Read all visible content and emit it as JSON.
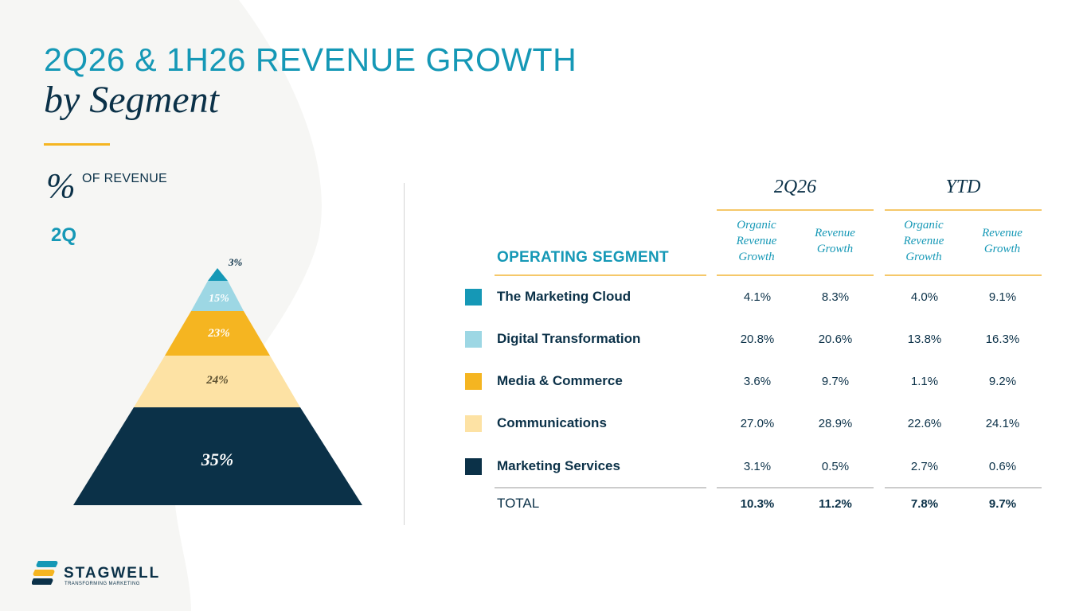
{
  "title": {
    "line1": "2Q26 & 1H26 REVENUE GROWTH",
    "line2": "by Segment"
  },
  "pct_block": {
    "symbol": "%",
    "label": "OF REVENUE",
    "period": "2Q"
  },
  "colors": {
    "accent_teal": "#1598b6",
    "navy": "#0b3148",
    "yellow": "#f5b521",
    "light_teal": "#9dd7e4",
    "light_yellow": "#fde2a4"
  },
  "pyramid": {
    "layers": [
      {
        "label": "3%",
        "color": "#1598b6"
      },
      {
        "label": "15%",
        "color": "#9dd7e4"
      },
      {
        "label": "23%",
        "color": "#f5b521"
      },
      {
        "label": "24%",
        "color": "#fde2a4"
      },
      {
        "label": "35%",
        "color": "#0b3148"
      }
    ]
  },
  "table": {
    "segment_header": "OPERATING SEGMENT",
    "groups": [
      {
        "title": "2Q26",
        "cols": [
          "Organic Revenue Growth",
          "Revenue Growth"
        ]
      },
      {
        "title": "YTD",
        "cols": [
          "Organic Revenue Growth",
          "Revenue Growth"
        ]
      }
    ],
    "rows": [
      {
        "name": "The Marketing Cloud",
        "color": "#1598b6",
        "values": [
          "4.1%",
          "8.3%",
          "4.0%",
          "9.1%"
        ]
      },
      {
        "name": "Digital Transformation",
        "color": "#9dd7e4",
        "values": [
          "20.8%",
          "20.6%",
          "13.8%",
          "16.3%"
        ]
      },
      {
        "name": "Media & Commerce",
        "color": "#f5b521",
        "values": [
          "3.6%",
          "9.7%",
          "1.1%",
          "9.2%"
        ]
      },
      {
        "name": "Communications",
        "color": "#fde2a4",
        "values": [
          "27.0%",
          "28.9%",
          "22.6%",
          "24.1%"
        ]
      },
      {
        "name": "Marketing Services",
        "color": "#0b3148",
        "values": [
          "3.1%",
          "0.5%",
          "2.7%",
          "0.6%"
        ]
      }
    ],
    "total": {
      "name": "TOTAL",
      "values": [
        "10.3%",
        "11.2%",
        "7.8%",
        "9.7%"
      ]
    }
  },
  "logo": {
    "name": "STAGWELL",
    "tagline": "TRANSFORMING MARKETING"
  }
}
